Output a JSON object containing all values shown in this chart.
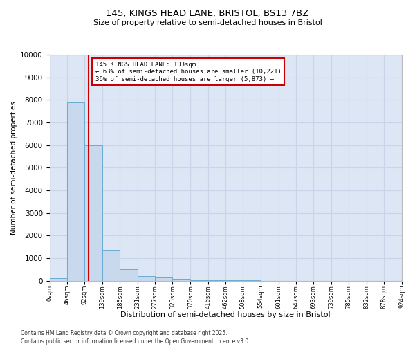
{
  "title_line1": "145, KINGS HEAD LANE, BRISTOL, BS13 7BZ",
  "title_line2": "Size of property relative to semi-detached houses in Bristol",
  "xlabel": "Distribution of semi-detached houses by size in Bristol",
  "ylabel": "Number of semi-detached properties",
  "footnote1": "Contains HM Land Registry data © Crown copyright and database right 2025.",
  "footnote2": "Contains public sector information licensed under the Open Government Licence v3.0.",
  "annotation_line1": "145 KINGS HEAD LANE: 103sqm",
  "annotation_line2": "← 63% of semi-detached houses are smaller (10,221)",
  "annotation_line3": "36% of semi-detached houses are larger (5,873) →",
  "property_size": 103,
  "bin_edges": [
    0,
    46,
    92,
    139,
    185,
    231,
    277,
    323,
    370,
    416,
    462,
    508,
    554,
    601,
    647,
    693,
    739,
    785,
    832,
    878,
    924
  ],
  "bar_heights": [
    100,
    7900,
    6000,
    1350,
    500,
    200,
    150,
    80,
    30,
    10,
    5,
    3,
    2,
    1,
    1,
    0,
    0,
    0,
    0,
    0
  ],
  "bar_color": "#c8d9ee",
  "bar_edge_color": "#6aaad4",
  "red_line_color": "#cc0000",
  "annotation_box_color": "#cc0000",
  "grid_color": "#c8d4e8",
  "bg_color": "#dce6f5",
  "ylim": [
    0,
    10000
  ],
  "yticks": [
    0,
    1000,
    2000,
    3000,
    4000,
    5000,
    6000,
    7000,
    8000,
    9000,
    10000
  ]
}
